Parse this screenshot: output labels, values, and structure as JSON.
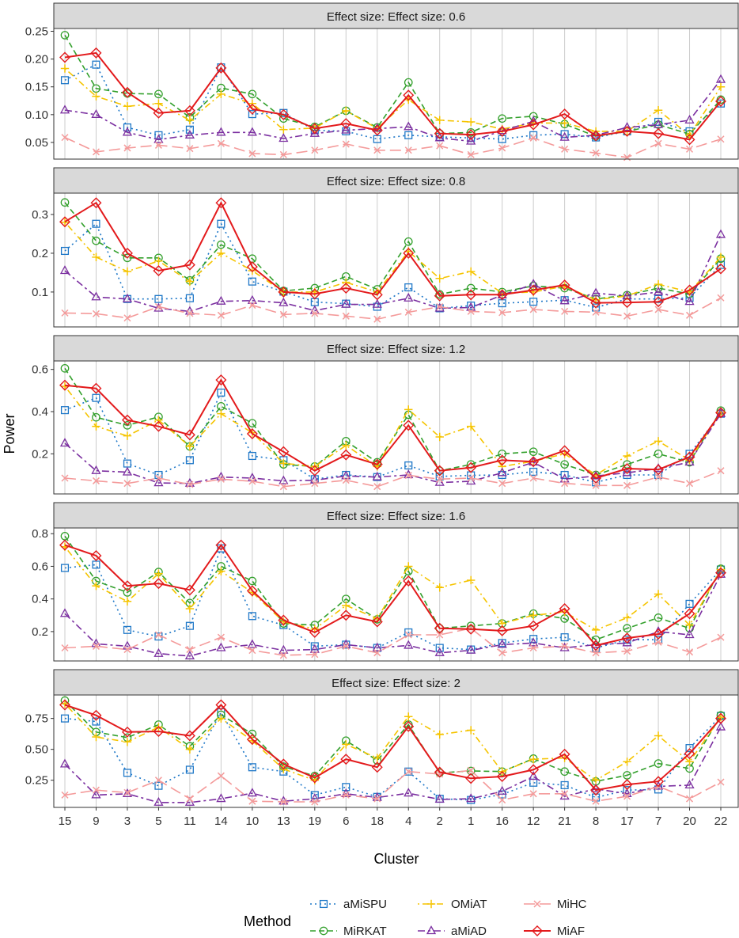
{
  "chart_data": {
    "type": "line",
    "categories": [
      "15",
      "9",
      "3",
      "5",
      "11",
      "14",
      "10",
      "13",
      "19",
      "6",
      "18",
      "4",
      "2",
      "1",
      "16",
      "12",
      "21",
      "8",
      "17",
      "7",
      "20",
      "22"
    ],
    "xlabel": "Cluster",
    "ylabel": "Power",
    "legend": {
      "title": "Method",
      "position": "bottom",
      "items": [
        "aMiSPU",
        "OMiAT",
        "MiHC",
        "MiRKAT",
        "aMiAD",
        "MiAF"
      ]
    },
    "series_styles": {
      "aMiSPU": {
        "color": "#1f78c8",
        "marker": "square",
        "dash": "dot"
      },
      "MiRKAT": {
        "color": "#33a02c",
        "marker": "circle",
        "dash": "dash"
      },
      "OMiAT": {
        "color": "#f5c400",
        "marker": "plus",
        "dash": "dotdash"
      },
      "aMiAD": {
        "color": "#7b2fa0",
        "marker": "triangle",
        "dash": "dashdot"
      },
      "MiHC": {
        "color": "#f49a9a",
        "marker": "cross",
        "dash": "longdash"
      },
      "MiAF": {
        "color": "#e31a1c",
        "marker": "diamond",
        "dash": "solid"
      }
    },
    "panels": [
      {
        "title": "Effect size: Effect size: 0.6",
        "ylim": [
          0.02,
          0.255
        ],
        "yticks": [
          0.05,
          0.1,
          0.15,
          0.2,
          0.25
        ],
        "ytick_labels": [
          "0.05",
          "0.10",
          "0.15",
          "0.20",
          "0.25"
        ],
        "series": [
          {
            "name": "aMiSPU",
            "values": [
              0.162,
              0.19,
              0.077,
              0.063,
              0.073,
              0.185,
              0.101,
              0.103,
              0.072,
              0.07,
              0.056,
              0.063,
              0.06,
              0.058,
              0.056,
              0.063,
              0.065,
              0.059,
              0.07,
              0.087,
              0.07,
              0.12
            ]
          },
          {
            "name": "MiRKAT",
            "values": [
              0.243,
              0.147,
              0.138,
              0.137,
              0.095,
              0.148,
              0.137,
              0.093,
              0.078,
              0.107,
              0.077,
              0.158,
              0.066,
              0.068,
              0.093,
              0.097,
              0.083,
              0.061,
              0.07,
              0.082,
              0.065,
              0.127
            ]
          },
          {
            "name": "OMiAT",
            "values": [
              0.183,
              0.133,
              0.115,
              0.12,
              0.09,
              0.137,
              0.12,
              0.073,
              0.076,
              0.107,
              0.075,
              0.127,
              0.09,
              0.087,
              0.074,
              0.085,
              0.085,
              0.07,
              0.07,
              0.108,
              0.063,
              0.15
            ]
          },
          {
            "name": "aMiAD",
            "values": [
              0.108,
              0.1,
              0.068,
              0.055,
              0.063,
              0.068,
              0.068,
              0.057,
              0.066,
              0.072,
              0.075,
              0.078,
              0.058,
              0.052,
              0.071,
              0.088,
              0.059,
              0.063,
              0.077,
              0.082,
              0.09,
              0.163
            ]
          },
          {
            "name": "MiHC",
            "values": [
              0.059,
              0.033,
              0.04,
              0.045,
              0.039,
              0.048,
              0.03,
              0.028,
              0.036,
              0.047,
              0.036,
              0.036,
              0.044,
              0.028,
              0.04,
              0.058,
              0.038,
              0.031,
              0.023,
              0.048,
              0.038,
              0.056
            ]
          },
          {
            "name": "MiAF",
            "values": [
              0.203,
              0.211,
              0.14,
              0.103,
              0.107,
              0.184,
              0.11,
              0.1,
              0.075,
              0.084,
              0.072,
              0.135,
              0.066,
              0.064,
              0.07,
              0.082,
              0.101,
              0.062,
              0.07,
              0.066,
              0.055,
              0.124
            ]
          }
        ]
      },
      {
        "title": "Effect size: Effect size: 0.8",
        "ylim": [
          0.01,
          0.355
        ],
        "yticks": [
          0.1,
          0.2,
          0.3
        ],
        "ytick_labels": [
          "0.1",
          "0.2",
          "0.3"
        ],
        "series": [
          {
            "name": "aMiSPU",
            "values": [
              0.206,
              0.276,
              0.082,
              0.082,
              0.084,
              0.276,
              0.127,
              0.101,
              0.074,
              0.07,
              0.062,
              0.112,
              0.058,
              0.065,
              0.071,
              0.075,
              0.079,
              0.06,
              0.082,
              0.082,
              0.085,
              0.17
            ]
          },
          {
            "name": "MiRKAT",
            "values": [
              0.331,
              0.232,
              0.188,
              0.188,
              0.13,
              0.222,
              0.186,
              0.103,
              0.11,
              0.14,
              0.107,
              0.23,
              0.094,
              0.11,
              0.1,
              0.116,
              0.11,
              0.082,
              0.092,
              0.11,
              0.095,
              0.186
            ]
          },
          {
            "name": "OMiAT",
            "values": [
              0.28,
              0.19,
              0.153,
              0.18,
              0.127,
              0.2,
              0.155,
              0.1,
              0.1,
              0.125,
              0.1,
              0.205,
              0.135,
              0.153,
              0.097,
              0.1,
              0.115,
              0.08,
              0.09,
              0.12,
              0.1,
              0.19
            ]
          },
          {
            "name": "aMiAD",
            "values": [
              0.155,
              0.087,
              0.082,
              0.058,
              0.05,
              0.076,
              0.078,
              0.072,
              0.052,
              0.068,
              0.068,
              0.084,
              0.058,
              0.06,
              0.092,
              0.12,
              0.077,
              0.097,
              0.09,
              0.1,
              0.075,
              0.248
            ]
          },
          {
            "name": "MiHC",
            "values": [
              0.046,
              0.044,
              0.033,
              0.062,
              0.045,
              0.04,
              0.066,
              0.042,
              0.045,
              0.038,
              0.03,
              0.048,
              0.062,
              0.05,
              0.047,
              0.055,
              0.05,
              0.048,
              0.038,
              0.055,
              0.04,
              0.085
            ]
          },
          {
            "name": "MiAF",
            "values": [
              0.281,
              0.33,
              0.2,
              0.155,
              0.17,
              0.33,
              0.165,
              0.1,
              0.095,
              0.11,
              0.093,
              0.2,
              0.09,
              0.093,
              0.093,
              0.105,
              0.118,
              0.072,
              0.073,
              0.075,
              0.105,
              0.16
            ]
          }
        ]
      },
      {
        "title": "Effect size: Effect size: 1.2",
        "ylim": [
          0.01,
          0.64
        ],
        "yticks": [
          0.2,
          0.4,
          0.6
        ],
        "ytick_labels": [
          "0.2",
          "0.4",
          "0.6"
        ],
        "series": [
          {
            "name": "aMiSPU",
            "values": [
              0.407,
              0.465,
              0.154,
              0.1,
              0.17,
              0.49,
              0.19,
              0.17,
              0.08,
              0.1,
              0.09,
              0.145,
              0.093,
              0.098,
              0.1,
              0.115,
              0.1,
              0.065,
              0.1,
              0.1,
              0.2,
              0.39
            ]
          },
          {
            "name": "MiRKAT",
            "values": [
              0.605,
              0.373,
              0.335,
              0.375,
              0.235,
              0.425,
              0.345,
              0.15,
              0.14,
              0.26,
              0.16,
              0.385,
              0.12,
              0.15,
              0.2,
              0.21,
              0.15,
              0.1,
              0.15,
              0.2,
              0.16,
              0.405
            ]
          },
          {
            "name": "OMiAT",
            "values": [
              0.52,
              0.33,
              0.285,
              0.36,
              0.235,
              0.39,
              0.3,
              0.155,
              0.14,
              0.24,
              0.14,
              0.41,
              0.28,
              0.33,
              0.14,
              0.165,
              0.2,
              0.1,
              0.19,
              0.26,
              0.17,
              0.395
            ]
          },
          {
            "name": "aMiAD",
            "values": [
              0.25,
              0.12,
              0.113,
              0.062,
              0.06,
              0.09,
              0.085,
              0.072,
              0.075,
              0.095,
              0.09,
              0.1,
              0.064,
              0.07,
              0.11,
              0.16,
              0.08,
              0.095,
              0.11,
              0.13,
              0.16,
              0.39
            ]
          },
          {
            "name": "MiHC",
            "values": [
              0.085,
              0.072,
              0.06,
              0.085,
              0.055,
              0.08,
              0.07,
              0.045,
              0.06,
              0.075,
              0.045,
              0.098,
              0.08,
              0.085,
              0.06,
              0.085,
              0.06,
              0.05,
              0.05,
              0.09,
              0.06,
              0.12
            ]
          },
          {
            "name": "MiAF",
            "values": [
              0.525,
              0.51,
              0.36,
              0.33,
              0.29,
              0.55,
              0.295,
              0.21,
              0.12,
              0.195,
              0.15,
              0.335,
              0.12,
              0.135,
              0.17,
              0.163,
              0.215,
              0.085,
              0.13,
              0.125,
              0.185,
              0.395
            ]
          }
        ]
      },
      {
        "title": "Effect size: Effect size: 1.6",
        "ylim": [
          0.02,
          0.835
        ],
        "yticks": [
          0.2,
          0.4,
          0.6,
          0.8
        ],
        "ytick_labels": [
          "0.2",
          "0.4",
          "0.6",
          "0.8"
        ],
        "series": [
          {
            "name": "aMiSPU",
            "values": [
              0.59,
              0.61,
              0.21,
              0.17,
              0.235,
              0.71,
              0.295,
              0.24,
              0.11,
              0.12,
              0.1,
              0.195,
              0.1,
              0.09,
              0.13,
              0.155,
              0.165,
              0.1,
              0.15,
              0.15,
              0.37,
              0.58
            ]
          },
          {
            "name": "MiRKAT",
            "values": [
              0.785,
              0.51,
              0.44,
              0.565,
              0.375,
              0.6,
              0.51,
              0.25,
              0.24,
              0.4,
              0.275,
              0.57,
              0.22,
              0.235,
              0.25,
              0.31,
              0.28,
              0.15,
              0.22,
              0.285,
              0.22,
              0.585
            ]
          },
          {
            "name": "OMiAT",
            "values": [
              0.72,
              0.48,
              0.385,
              0.555,
              0.34,
              0.57,
              0.44,
              0.26,
              0.215,
              0.36,
              0.28,
              0.6,
              0.47,
              0.515,
              0.25,
              0.3,
              0.32,
              0.21,
              0.285,
              0.43,
              0.24,
              0.58
            ]
          },
          {
            "name": "aMiAD",
            "values": [
              0.31,
              0.125,
              0.11,
              0.065,
              0.05,
              0.1,
              0.12,
              0.085,
              0.09,
              0.12,
              0.1,
              0.115,
              0.07,
              0.085,
              0.12,
              0.13,
              0.1,
              0.12,
              0.13,
              0.2,
              0.18,
              0.55
            ]
          },
          {
            "name": "MiHC",
            "values": [
              0.1,
              0.11,
              0.09,
              0.18,
              0.09,
              0.165,
              0.085,
              0.055,
              0.06,
              0.11,
              0.07,
              0.18,
              0.18,
              0.22,
              0.07,
              0.1,
              0.11,
              0.07,
              0.08,
              0.135,
              0.075,
              0.165
            ]
          },
          {
            "name": "MiAF",
            "values": [
              0.73,
              0.665,
              0.48,
              0.495,
              0.455,
              0.73,
              0.45,
              0.27,
              0.195,
              0.3,
              0.26,
              0.51,
              0.22,
              0.215,
              0.205,
              0.235,
              0.34,
              0.115,
              0.16,
              0.185,
              0.31,
              0.56
            ]
          }
        ]
      },
      {
        "title": "Effect size: Effect size: 2",
        "ylim": [
          0.03,
          0.94
        ],
        "yticks": [
          0.25,
          0.5,
          0.75
        ],
        "ytick_labels": [
          "0.25",
          "0.50",
          "0.75"
        ],
        "series": [
          {
            "name": "aMiSPU",
            "values": [
              0.75,
              0.725,
              0.31,
              0.205,
              0.335,
              0.8,
              0.355,
              0.32,
              0.13,
              0.195,
              0.115,
              0.32,
              0.1,
              0.09,
              0.135,
              0.23,
              0.21,
              0.11,
              0.17,
              0.175,
              0.51,
              0.77
            ]
          },
          {
            "name": "MiRKAT",
            "values": [
              0.895,
              0.64,
              0.595,
              0.7,
              0.525,
              0.78,
              0.625,
              0.36,
              0.285,
              0.57,
              0.41,
              0.7,
              0.31,
              0.325,
              0.32,
              0.425,
              0.32,
              0.24,
              0.29,
              0.385,
              0.345,
              0.775
            ]
          },
          {
            "name": "OMiAT",
            "values": [
              0.87,
              0.6,
              0.56,
              0.68,
              0.5,
              0.75,
              0.57,
              0.34,
              0.25,
              0.54,
              0.43,
              0.765,
              0.62,
              0.655,
              0.32,
              0.42,
              0.43,
              0.25,
              0.4,
              0.61,
              0.4,
              0.76
            ]
          },
          {
            "name": "aMiAD",
            "values": [
              0.38,
              0.13,
              0.14,
              0.07,
              0.07,
              0.1,
              0.145,
              0.08,
              0.1,
              0.14,
              0.11,
              0.145,
              0.095,
              0.1,
              0.16,
              0.28,
              0.12,
              0.18,
              0.14,
              0.2,
              0.21,
              0.68
            ]
          },
          {
            "name": "MiHC",
            "values": [
              0.13,
              0.17,
              0.15,
              0.25,
              0.1,
              0.285,
              0.08,
              0.075,
              0.075,
              0.13,
              0.1,
              0.32,
              0.3,
              0.33,
              0.09,
              0.14,
              0.14,
              0.08,
              0.12,
              0.2,
              0.1,
              0.235
            ]
          },
          {
            "name": "MiAF",
            "values": [
              0.86,
              0.775,
              0.64,
              0.645,
              0.61,
              0.86,
              0.58,
              0.38,
              0.27,
              0.42,
              0.355,
              0.685,
              0.315,
              0.265,
              0.28,
              0.335,
              0.46,
              0.17,
              0.215,
              0.24,
              0.465,
              0.75
            ]
          }
        ]
      }
    ]
  }
}
